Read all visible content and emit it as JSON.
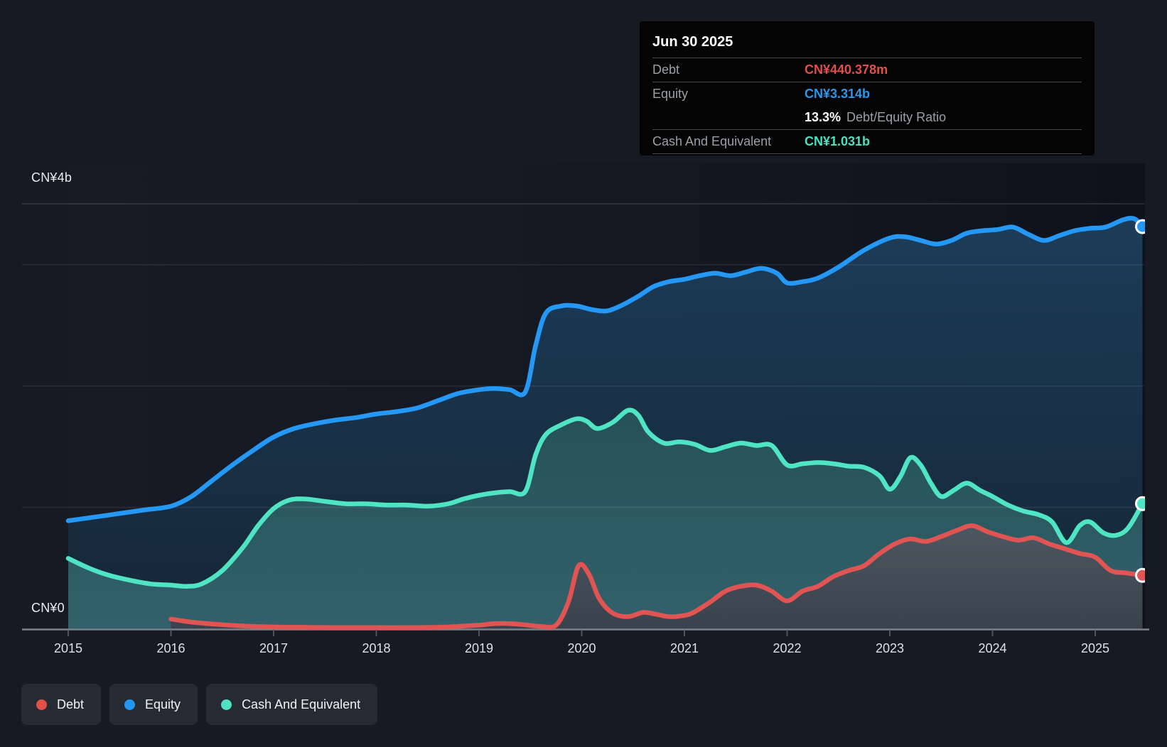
{
  "axis": {
    "y_top_label": "CN¥4b",
    "y_zero_label": "CN¥0"
  },
  "tooltip": {
    "date": "Jun 30 2025",
    "debt_label": "Debt",
    "debt_value": "CN¥440.378m",
    "equity_label": "Equity",
    "equity_value": "CN¥3.314b",
    "ratio_value": "13.3%",
    "ratio_label": "Debt/Equity Ratio",
    "cash_label": "Cash And Equivalent",
    "cash_value": "CN¥1.031b"
  },
  "legend": {
    "items": [
      {
        "label": "Debt",
        "color": "#e2504b"
      },
      {
        "label": "Equity",
        "color": "#2196f3"
      },
      {
        "label": "Cash And Equivalent",
        "color": "#4ee4c2"
      }
    ]
  },
  "colors": {
    "background": "#151a23",
    "gridline": "rgba(255,255,255,0.08)",
    "axis_line": "#79828a",
    "tick": "#4e545c",
    "debt": "#e05454",
    "equity": "#2598f5",
    "cash": "#4fe5c4",
    "tooltip_bg": "#040404"
  },
  "chart_data": {
    "type": "area",
    "unit": "CN¥ billions",
    "title": "",
    "xlabel": "",
    "ylabel": "CN¥",
    "xlim": [
      2015,
      2025.46
    ],
    "ylim": [
      0,
      4
    ],
    "grid": "on",
    "gridline_values": [
      1,
      2,
      3
    ],
    "x_ticks": [
      2015,
      2016,
      2017,
      2018,
      2019,
      2020,
      2021,
      2022,
      2023,
      2024,
      2025
    ],
    "legend_position": "bottom-left",
    "last_point_date": "Jun 30 2025",
    "series": [
      {
        "name": "Equity",
        "color": "#2598f5",
        "end_value_b": 3.314,
        "points": [
          [
            2015,
            0.89
          ],
          [
            2015.25,
            0.92
          ],
          [
            2015.5,
            0.95
          ],
          [
            2015.75,
            0.98
          ],
          [
            2016,
            1.01
          ],
          [
            2016.2,
            1.09
          ],
          [
            2016.4,
            1.22
          ],
          [
            2016.6,
            1.35
          ],
          [
            2016.8,
            1.47
          ],
          [
            2017,
            1.58
          ],
          [
            2017.2,
            1.65
          ],
          [
            2017.4,
            1.69
          ],
          [
            2017.6,
            1.72
          ],
          [
            2017.8,
            1.74
          ],
          [
            2018,
            1.77
          ],
          [
            2018.2,
            1.79
          ],
          [
            2018.4,
            1.82
          ],
          [
            2018.6,
            1.88
          ],
          [
            2018.8,
            1.94
          ],
          [
            2019,
            1.97
          ],
          [
            2019.15,
            1.98
          ],
          [
            2019.3,
            1.97
          ],
          [
            2019.45,
            1.95
          ],
          [
            2019.55,
            2.33
          ],
          [
            2019.65,
            2.6
          ],
          [
            2019.8,
            2.66
          ],
          [
            2019.95,
            2.66
          ],
          [
            2020.1,
            2.63
          ],
          [
            2020.25,
            2.62
          ],
          [
            2020.4,
            2.67
          ],
          [
            2020.55,
            2.74
          ],
          [
            2020.7,
            2.82
          ],
          [
            2020.85,
            2.86
          ],
          [
            2021,
            2.88
          ],
          [
            2021.15,
            2.91
          ],
          [
            2021.3,
            2.93
          ],
          [
            2021.45,
            2.91
          ],
          [
            2021.6,
            2.94
          ],
          [
            2021.75,
            2.97
          ],
          [
            2021.9,
            2.93
          ],
          [
            2022,
            2.85
          ],
          [
            2022.15,
            2.86
          ],
          [
            2022.3,
            2.89
          ],
          [
            2022.5,
            2.98
          ],
          [
            2022.75,
            3.12
          ],
          [
            2023,
            3.22
          ],
          [
            2023.15,
            3.23
          ],
          [
            2023.3,
            3.2
          ],
          [
            2023.45,
            3.17
          ],
          [
            2023.6,
            3.2
          ],
          [
            2023.75,
            3.26
          ],
          [
            2023.9,
            3.28
          ],
          [
            2024.05,
            3.29
          ],
          [
            2024.2,
            3.31
          ],
          [
            2024.35,
            3.25
          ],
          [
            2024.5,
            3.2
          ],
          [
            2024.65,
            3.24
          ],
          [
            2024.8,
            3.28
          ],
          [
            2024.95,
            3.3
          ],
          [
            2025.1,
            3.31
          ],
          [
            2025.27,
            3.37
          ],
          [
            2025.38,
            3.38
          ],
          [
            2025.46,
            3.314
          ]
        ]
      },
      {
        "name": "Cash And Equivalent",
        "color": "#4fe5c4",
        "end_value_b": 1.031,
        "points": [
          [
            2015,
            0.58
          ],
          [
            2015.2,
            0.5
          ],
          [
            2015.4,
            0.44
          ],
          [
            2015.6,
            0.4
          ],
          [
            2015.8,
            0.37
          ],
          [
            2016,
            0.36
          ],
          [
            2016.15,
            0.35
          ],
          [
            2016.3,
            0.37
          ],
          [
            2016.5,
            0.48
          ],
          [
            2016.7,
            0.67
          ],
          [
            2016.85,
            0.85
          ],
          [
            2017,
            0.99
          ],
          [
            2017.15,
            1.06
          ],
          [
            2017.3,
            1.07
          ],
          [
            2017.5,
            1.05
          ],
          [
            2017.7,
            1.03
          ],
          [
            2017.9,
            1.03
          ],
          [
            2018.1,
            1.02
          ],
          [
            2018.3,
            1.02
          ],
          [
            2018.5,
            1.01
          ],
          [
            2018.7,
            1.03
          ],
          [
            2018.85,
            1.07
          ],
          [
            2019,
            1.1
          ],
          [
            2019.15,
            1.12
          ],
          [
            2019.3,
            1.13
          ],
          [
            2019.45,
            1.13
          ],
          [
            2019.55,
            1.43
          ],
          [
            2019.65,
            1.6
          ],
          [
            2019.8,
            1.68
          ],
          [
            2019.95,
            1.73
          ],
          [
            2020.05,
            1.71
          ],
          [
            2020.15,
            1.65
          ],
          [
            2020.3,
            1.7
          ],
          [
            2020.45,
            1.8
          ],
          [
            2020.55,
            1.76
          ],
          [
            2020.65,
            1.62
          ],
          [
            2020.8,
            1.53
          ],
          [
            2020.95,
            1.54
          ],
          [
            2021.1,
            1.52
          ],
          [
            2021.25,
            1.47
          ],
          [
            2021.4,
            1.5
          ],
          [
            2021.55,
            1.53
          ],
          [
            2021.7,
            1.51
          ],
          [
            2021.85,
            1.51
          ],
          [
            2022,
            1.35
          ],
          [
            2022.15,
            1.36
          ],
          [
            2022.3,
            1.37
          ],
          [
            2022.45,
            1.36
          ],
          [
            2022.6,
            1.34
          ],
          [
            2022.75,
            1.33
          ],
          [
            2022.9,
            1.26
          ],
          [
            2023,
            1.15
          ],
          [
            2023.1,
            1.25
          ],
          [
            2023.2,
            1.41
          ],
          [
            2023.3,
            1.35
          ],
          [
            2023.4,
            1.2
          ],
          [
            2023.5,
            1.09
          ],
          [
            2023.62,
            1.14
          ],
          [
            2023.75,
            1.2
          ],
          [
            2023.88,
            1.14
          ],
          [
            2024,
            1.09
          ],
          [
            2024.15,
            1.02
          ],
          [
            2024.3,
            0.97
          ],
          [
            2024.45,
            0.94
          ],
          [
            2024.58,
            0.88
          ],
          [
            2024.72,
            0.71
          ],
          [
            2024.85,
            0.85
          ],
          [
            2024.95,
            0.88
          ],
          [
            2025.08,
            0.79
          ],
          [
            2025.2,
            0.77
          ],
          [
            2025.32,
            0.83
          ],
          [
            2025.46,
            1.031
          ]
        ]
      },
      {
        "name": "Debt",
        "color": "#e05454",
        "end_value_b": 0.44,
        "points": [
          [
            2016,
            0.08
          ],
          [
            2016.2,
            0.055
          ],
          [
            2016.4,
            0.04
          ],
          [
            2016.6,
            0.028
          ],
          [
            2016.8,
            0.02
          ],
          [
            2017,
            0.015
          ],
          [
            2017.3,
            0.012
          ],
          [
            2017.6,
            0.01
          ],
          [
            2018,
            0.01
          ],
          [
            2018.4,
            0.01
          ],
          [
            2018.7,
            0.015
          ],
          [
            2019,
            0.03
          ],
          [
            2019.15,
            0.042
          ],
          [
            2019.3,
            0.043
          ],
          [
            2019.45,
            0.032
          ],
          [
            2019.6,
            0.02
          ],
          [
            2019.75,
            0.03
          ],
          [
            2019.87,
            0.22
          ],
          [
            2019.97,
            0.52
          ],
          [
            2020.07,
            0.45
          ],
          [
            2020.17,
            0.25
          ],
          [
            2020.3,
            0.13
          ],
          [
            2020.45,
            0.1
          ],
          [
            2020.6,
            0.135
          ],
          [
            2020.72,
            0.12
          ],
          [
            2020.85,
            0.1
          ],
          [
            2021,
            0.11
          ],
          [
            2021.1,
            0.14
          ],
          [
            2021.25,
            0.22
          ],
          [
            2021.4,
            0.31
          ],
          [
            2021.55,
            0.35
          ],
          [
            2021.7,
            0.36
          ],
          [
            2021.85,
            0.31
          ],
          [
            2022,
            0.23
          ],
          [
            2022.15,
            0.31
          ],
          [
            2022.3,
            0.35
          ],
          [
            2022.45,
            0.43
          ],
          [
            2022.6,
            0.48
          ],
          [
            2022.75,
            0.52
          ],
          [
            2022.9,
            0.62
          ],
          [
            2023.05,
            0.7
          ],
          [
            2023.2,
            0.74
          ],
          [
            2023.35,
            0.72
          ],
          [
            2023.5,
            0.76
          ],
          [
            2023.65,
            0.81
          ],
          [
            2023.8,
            0.85
          ],
          [
            2023.95,
            0.8
          ],
          [
            2024.1,
            0.76
          ],
          [
            2024.25,
            0.73
          ],
          [
            2024.4,
            0.75
          ],
          [
            2024.55,
            0.7
          ],
          [
            2024.7,
            0.66
          ],
          [
            2024.85,
            0.62
          ],
          [
            2025,
            0.59
          ],
          [
            2025.15,
            0.48
          ],
          [
            2025.3,
            0.46
          ],
          [
            2025.46,
            0.44
          ]
        ]
      }
    ]
  }
}
